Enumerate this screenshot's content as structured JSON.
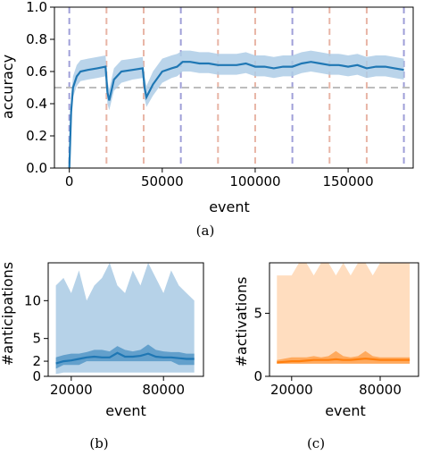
{
  "colors": {
    "blue": "#1f77b4",
    "blue_band": "#aecde6",
    "orange": "#ff7f0e",
    "orange_band": "#ffd9b8",
    "purple_dash": "#9f9fd8",
    "salmon_dash": "#e8b5a6",
    "threshold_dash": "#bdbdbd"
  },
  "chart_data": [
    {
      "id": "a",
      "type": "line",
      "caption": "(a)",
      "xlabel": "event",
      "ylabel": "accuracy",
      "xlim": [
        -8000,
        185000
      ],
      "ylim": [
        0.0,
        1.0
      ],
      "xticks": [
        0,
        50000,
        100000,
        150000
      ],
      "xtick_labels": [
        "0",
        "50000",
        "100000",
        "150000"
      ],
      "yticks": [
        0.0,
        0.2,
        0.4,
        0.6,
        0.8,
        1.0
      ],
      "ytick_labels": [
        "0.0",
        "0.2",
        "0.4",
        "0.6",
        "0.8",
        "1.0"
      ],
      "threshold": 0.5,
      "phase_lines": [
        {
          "x": 0,
          "style": "purple"
        },
        {
          "x": 20000,
          "style": "salmon"
        },
        {
          "x": 40000,
          "style": "salmon"
        },
        {
          "x": 60000,
          "style": "purple"
        },
        {
          "x": 80000,
          "style": "salmon"
        },
        {
          "x": 100000,
          "style": "salmon"
        },
        {
          "x": 120000,
          "style": "purple"
        },
        {
          "x": 140000,
          "style": "salmon"
        },
        {
          "x": 160000,
          "style": "salmon"
        },
        {
          "x": 180000,
          "style": "purple"
        }
      ],
      "series": [
        {
          "x": [
            0,
            1000,
            2000,
            4000,
            6000,
            10000,
            15000,
            19500,
            20500,
            21500,
            24000,
            28000,
            34000,
            39500,
            40500,
            41500,
            45000,
            50000,
            55000,
            58000,
            61000,
            65000,
            70000,
            75000,
            80000,
            85000,
            90000,
            95000,
            100000,
            105000,
            110000,
            115000,
            120000,
            125000,
            130000,
            135000,
            140000,
            145000,
            150000,
            155000,
            160000,
            165000,
            170000,
            175000,
            180000
          ],
          "y": [
            0.0,
            0.35,
            0.5,
            0.57,
            0.6,
            0.61,
            0.62,
            0.63,
            0.47,
            0.42,
            0.55,
            0.6,
            0.61,
            0.62,
            0.5,
            0.44,
            0.52,
            0.6,
            0.62,
            0.63,
            0.66,
            0.66,
            0.65,
            0.65,
            0.64,
            0.64,
            0.64,
            0.65,
            0.63,
            0.63,
            0.62,
            0.63,
            0.63,
            0.65,
            0.66,
            0.65,
            0.64,
            0.64,
            0.63,
            0.64,
            0.62,
            0.63,
            0.63,
            0.62,
            0.61
          ],
          "band_lower": [
            0.0,
            0.28,
            0.44,
            0.51,
            0.54,
            0.55,
            0.56,
            0.57,
            0.4,
            0.36,
            0.48,
            0.53,
            0.55,
            0.56,
            0.43,
            0.38,
            0.45,
            0.53,
            0.56,
            0.57,
            0.6,
            0.6,
            0.59,
            0.59,
            0.58,
            0.58,
            0.58,
            0.59,
            0.57,
            0.57,
            0.56,
            0.57,
            0.57,
            0.59,
            0.6,
            0.59,
            0.58,
            0.58,
            0.57,
            0.58,
            0.56,
            0.57,
            0.57,
            0.56,
            0.55
          ],
          "band_upper": [
            0.05,
            0.43,
            0.57,
            0.64,
            0.67,
            0.68,
            0.69,
            0.7,
            0.54,
            0.49,
            0.62,
            0.67,
            0.68,
            0.69,
            0.57,
            0.51,
            0.6,
            0.68,
            0.7,
            0.71,
            0.73,
            0.73,
            0.72,
            0.72,
            0.71,
            0.71,
            0.71,
            0.72,
            0.7,
            0.7,
            0.69,
            0.7,
            0.7,
            0.72,
            0.73,
            0.72,
            0.71,
            0.71,
            0.7,
            0.71,
            0.69,
            0.7,
            0.7,
            0.69,
            0.68
          ]
        }
      ]
    },
    {
      "id": "b",
      "type": "area",
      "caption": "(b)",
      "xlabel": "event",
      "ylabel": "#anticipations",
      "xlim": [
        5000,
        106000
      ],
      "ylim": [
        0,
        15
      ],
      "xticks": [
        20000,
        80000
      ],
      "xtick_labels": [
        "20000",
        "80000"
      ],
      "yticks": [
        0,
        2,
        5,
        10
      ],
      "ytick_labels": [
        "0",
        "2",
        "5",
        "10"
      ],
      "series": [
        {
          "x": [
            10000,
            15000,
            20000,
            25000,
            30000,
            35000,
            40000,
            45000,
            50000,
            55000,
            60000,
            65000,
            70000,
            75000,
            80000,
            85000,
            90000,
            95000,
            100000
          ],
          "y": [
            1.7,
            2.0,
            2.1,
            2.3,
            2.5,
            2.6,
            2.5,
            2.5,
            3.1,
            2.6,
            2.6,
            2.7,
            3.0,
            2.6,
            2.5,
            2.5,
            2.4,
            2.3,
            2.3
          ],
          "iqr_lower": [
            1.0,
            1.5,
            1.5,
            1.5,
            2.0,
            2.0,
            2.0,
            2.0,
            2.0,
            2.0,
            2.0,
            2.0,
            2.0,
            2.0,
            2.0,
            2.0,
            1.5,
            1.5,
            1.5
          ],
          "iqr_upper": [
            2.5,
            2.8,
            3.0,
            3.0,
            3.2,
            3.5,
            3.5,
            3.3,
            4.0,
            3.5,
            3.3,
            3.5,
            4.2,
            3.5,
            3.3,
            3.2,
            3.2,
            3.0,
            3.0
          ],
          "range_lower": [
            0.3,
            0.5,
            0.5,
            0.5,
            0.5,
            0.5,
            0.5,
            0.5,
            0.5,
            0.5,
            0.5,
            0.5,
            0.5,
            0.5,
            0.5,
            0.5,
            0.5,
            0.5,
            0.5
          ],
          "range_upper": [
            12,
            13,
            11,
            14,
            10,
            12,
            13,
            15,
            12,
            11,
            14,
            12,
            15,
            13,
            11,
            14,
            12,
            11,
            10
          ]
        }
      ]
    },
    {
      "id": "c",
      "type": "area",
      "caption": "(c)",
      "xlabel": "event",
      "ylabel": "#activations",
      "xlim": [
        5000,
        106000
      ],
      "ylim": [
        0,
        9
      ],
      "xticks": [
        20000,
        80000
      ],
      "xtick_labels": [
        "20000",
        "80000"
      ],
      "yticks": [
        0,
        5
      ],
      "ytick_labels": [
        "0",
        "5"
      ],
      "series": [
        {
          "x": [
            10000,
            15000,
            20000,
            25000,
            30000,
            35000,
            40000,
            45000,
            50000,
            55000,
            60000,
            65000,
            70000,
            75000,
            80000,
            85000,
            90000,
            95000,
            100000
          ],
          "y": [
            1.1,
            1.15,
            1.2,
            1.2,
            1.25,
            1.3,
            1.3,
            1.3,
            1.35,
            1.3,
            1.3,
            1.35,
            1.4,
            1.35,
            1.3,
            1.3,
            1.3,
            1.3,
            1.3
          ],
          "iqr_lower": [
            1.0,
            1.0,
            1.0,
            1.0,
            1.0,
            1.0,
            1.0,
            1.0,
            1.0,
            1.0,
            1.0,
            1.0,
            1.0,
            1.0,
            1.0,
            1.0,
            1.0,
            1.0,
            1.0
          ],
          "iqr_upper": [
            1.3,
            1.4,
            1.5,
            1.5,
            1.5,
            1.6,
            1.5,
            1.6,
            2.0,
            1.6,
            1.5,
            1.6,
            2.0,
            1.6,
            1.5,
            1.5,
            1.5,
            1.5,
            1.5
          ],
          "range_lower": [
            1.0,
            1.0,
            1.0,
            1.0,
            1.0,
            1.0,
            1.0,
            1.0,
            1.0,
            1.0,
            1.0,
            1.0,
            1.0,
            1.0,
            1.0,
            1.0,
            1.0,
            1.0,
            1.0
          ],
          "range_upper": [
            8,
            8,
            8,
            9,
            9,
            8,
            9,
            9,
            8,
            9,
            8,
            9,
            9,
            8,
            9,
            9,
            9,
            9,
            9
          ]
        }
      ]
    }
  ]
}
